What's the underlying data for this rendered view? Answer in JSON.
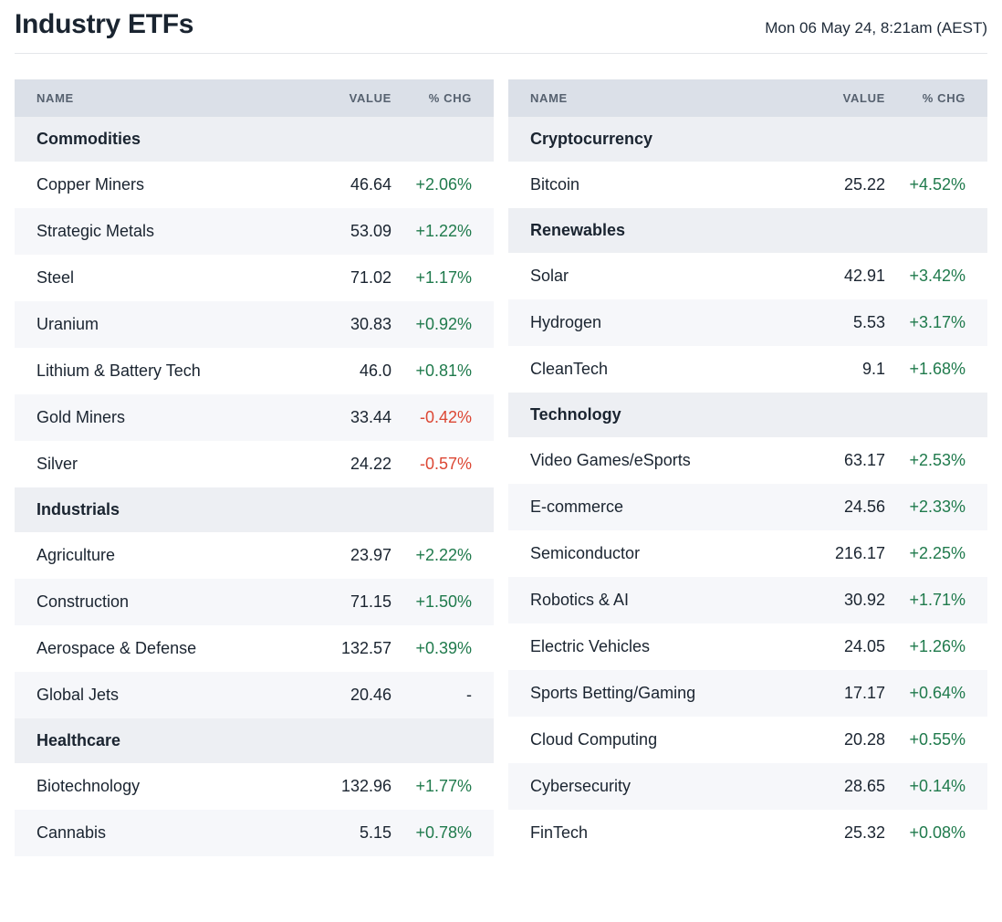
{
  "header": {
    "title": "Industry ETFs",
    "timestamp": "Mon 06 May 24, 8:21am (AEST)"
  },
  "colors": {
    "positive": "#1f7a4c",
    "negative": "#dc4734",
    "header_bg": "#dbe0e8",
    "section_bg": "#edeff3",
    "row_alt_bg": "#f6f7fa",
    "text": "#1a2430"
  },
  "chart_data": [
    {
      "type": "table",
      "title": "Industry ETFs — left column",
      "columns": [
        "NAME",
        "VALUE",
        "% CHG"
      ],
      "sections": [
        {
          "label": "Commodities",
          "rows": [
            {
              "name": "Copper Miners",
              "value": "46.64",
              "chg": "+2.06%",
              "direction": "up"
            },
            {
              "name": "Strategic Metals",
              "value": "53.09",
              "chg": "+1.22%",
              "direction": "up"
            },
            {
              "name": "Steel",
              "value": "71.02",
              "chg": "+1.17%",
              "direction": "up"
            },
            {
              "name": "Uranium",
              "value": "30.83",
              "chg": "+0.92%",
              "direction": "up"
            },
            {
              "name": "Lithium & Battery Tech",
              "value": "46.0",
              "chg": "+0.81%",
              "direction": "up"
            },
            {
              "name": "Gold Miners",
              "value": "33.44",
              "chg": "-0.42%",
              "direction": "down"
            },
            {
              "name": "Silver",
              "value": "24.22",
              "chg": "-0.57%",
              "direction": "down"
            }
          ]
        },
        {
          "label": "Industrials",
          "rows": [
            {
              "name": "Agriculture",
              "value": "23.97",
              "chg": "+2.22%",
              "direction": "up"
            },
            {
              "name": "Construction",
              "value": "71.15",
              "chg": "+1.50%",
              "direction": "up"
            },
            {
              "name": "Aerospace & Defense",
              "value": "132.57",
              "chg": "+0.39%",
              "direction": "up"
            },
            {
              "name": "Global Jets",
              "value": "20.46",
              "chg": "-",
              "direction": "flat"
            }
          ]
        },
        {
          "label": "Healthcare",
          "rows": [
            {
              "name": "Biotechnology",
              "value": "132.96",
              "chg": "+1.77%",
              "direction": "up"
            },
            {
              "name": "Cannabis",
              "value": "5.15",
              "chg": "+0.78%",
              "direction": "up"
            }
          ]
        }
      ]
    },
    {
      "type": "table",
      "title": "Industry ETFs — right column",
      "columns": [
        "NAME",
        "VALUE",
        "% CHG"
      ],
      "sections": [
        {
          "label": "Cryptocurrency",
          "rows": [
            {
              "name": "Bitcoin",
              "value": "25.22",
              "chg": "+4.52%",
              "direction": "up"
            }
          ]
        },
        {
          "label": "Renewables",
          "rows": [
            {
              "name": "Solar",
              "value": "42.91",
              "chg": "+3.42%",
              "direction": "up"
            },
            {
              "name": "Hydrogen",
              "value": "5.53",
              "chg": "+3.17%",
              "direction": "up"
            },
            {
              "name": "CleanTech",
              "value": "9.1",
              "chg": "+1.68%",
              "direction": "up"
            }
          ]
        },
        {
          "label": "Technology",
          "rows": [
            {
              "name": "Video Games/eSports",
              "value": "63.17",
              "chg": "+2.53%",
              "direction": "up"
            },
            {
              "name": "E-commerce",
              "value": "24.56",
              "chg": "+2.33%",
              "direction": "up"
            },
            {
              "name": "Semiconductor",
              "value": "216.17",
              "chg": "+2.25%",
              "direction": "up"
            },
            {
              "name": "Robotics & AI",
              "value": "30.92",
              "chg": "+1.71%",
              "direction": "up"
            },
            {
              "name": "Electric Vehicles",
              "value": "24.05",
              "chg": "+1.26%",
              "direction": "up"
            },
            {
              "name": "Sports Betting/Gaming",
              "value": "17.17",
              "chg": "+0.64%",
              "direction": "up"
            },
            {
              "name": "Cloud Computing",
              "value": "20.28",
              "chg": "+0.55%",
              "direction": "up"
            },
            {
              "name": "Cybersecurity",
              "value": "28.65",
              "chg": "+0.14%",
              "direction": "up"
            },
            {
              "name": "FinTech",
              "value": "25.32",
              "chg": "+0.08%",
              "direction": "up"
            }
          ]
        }
      ]
    }
  ]
}
